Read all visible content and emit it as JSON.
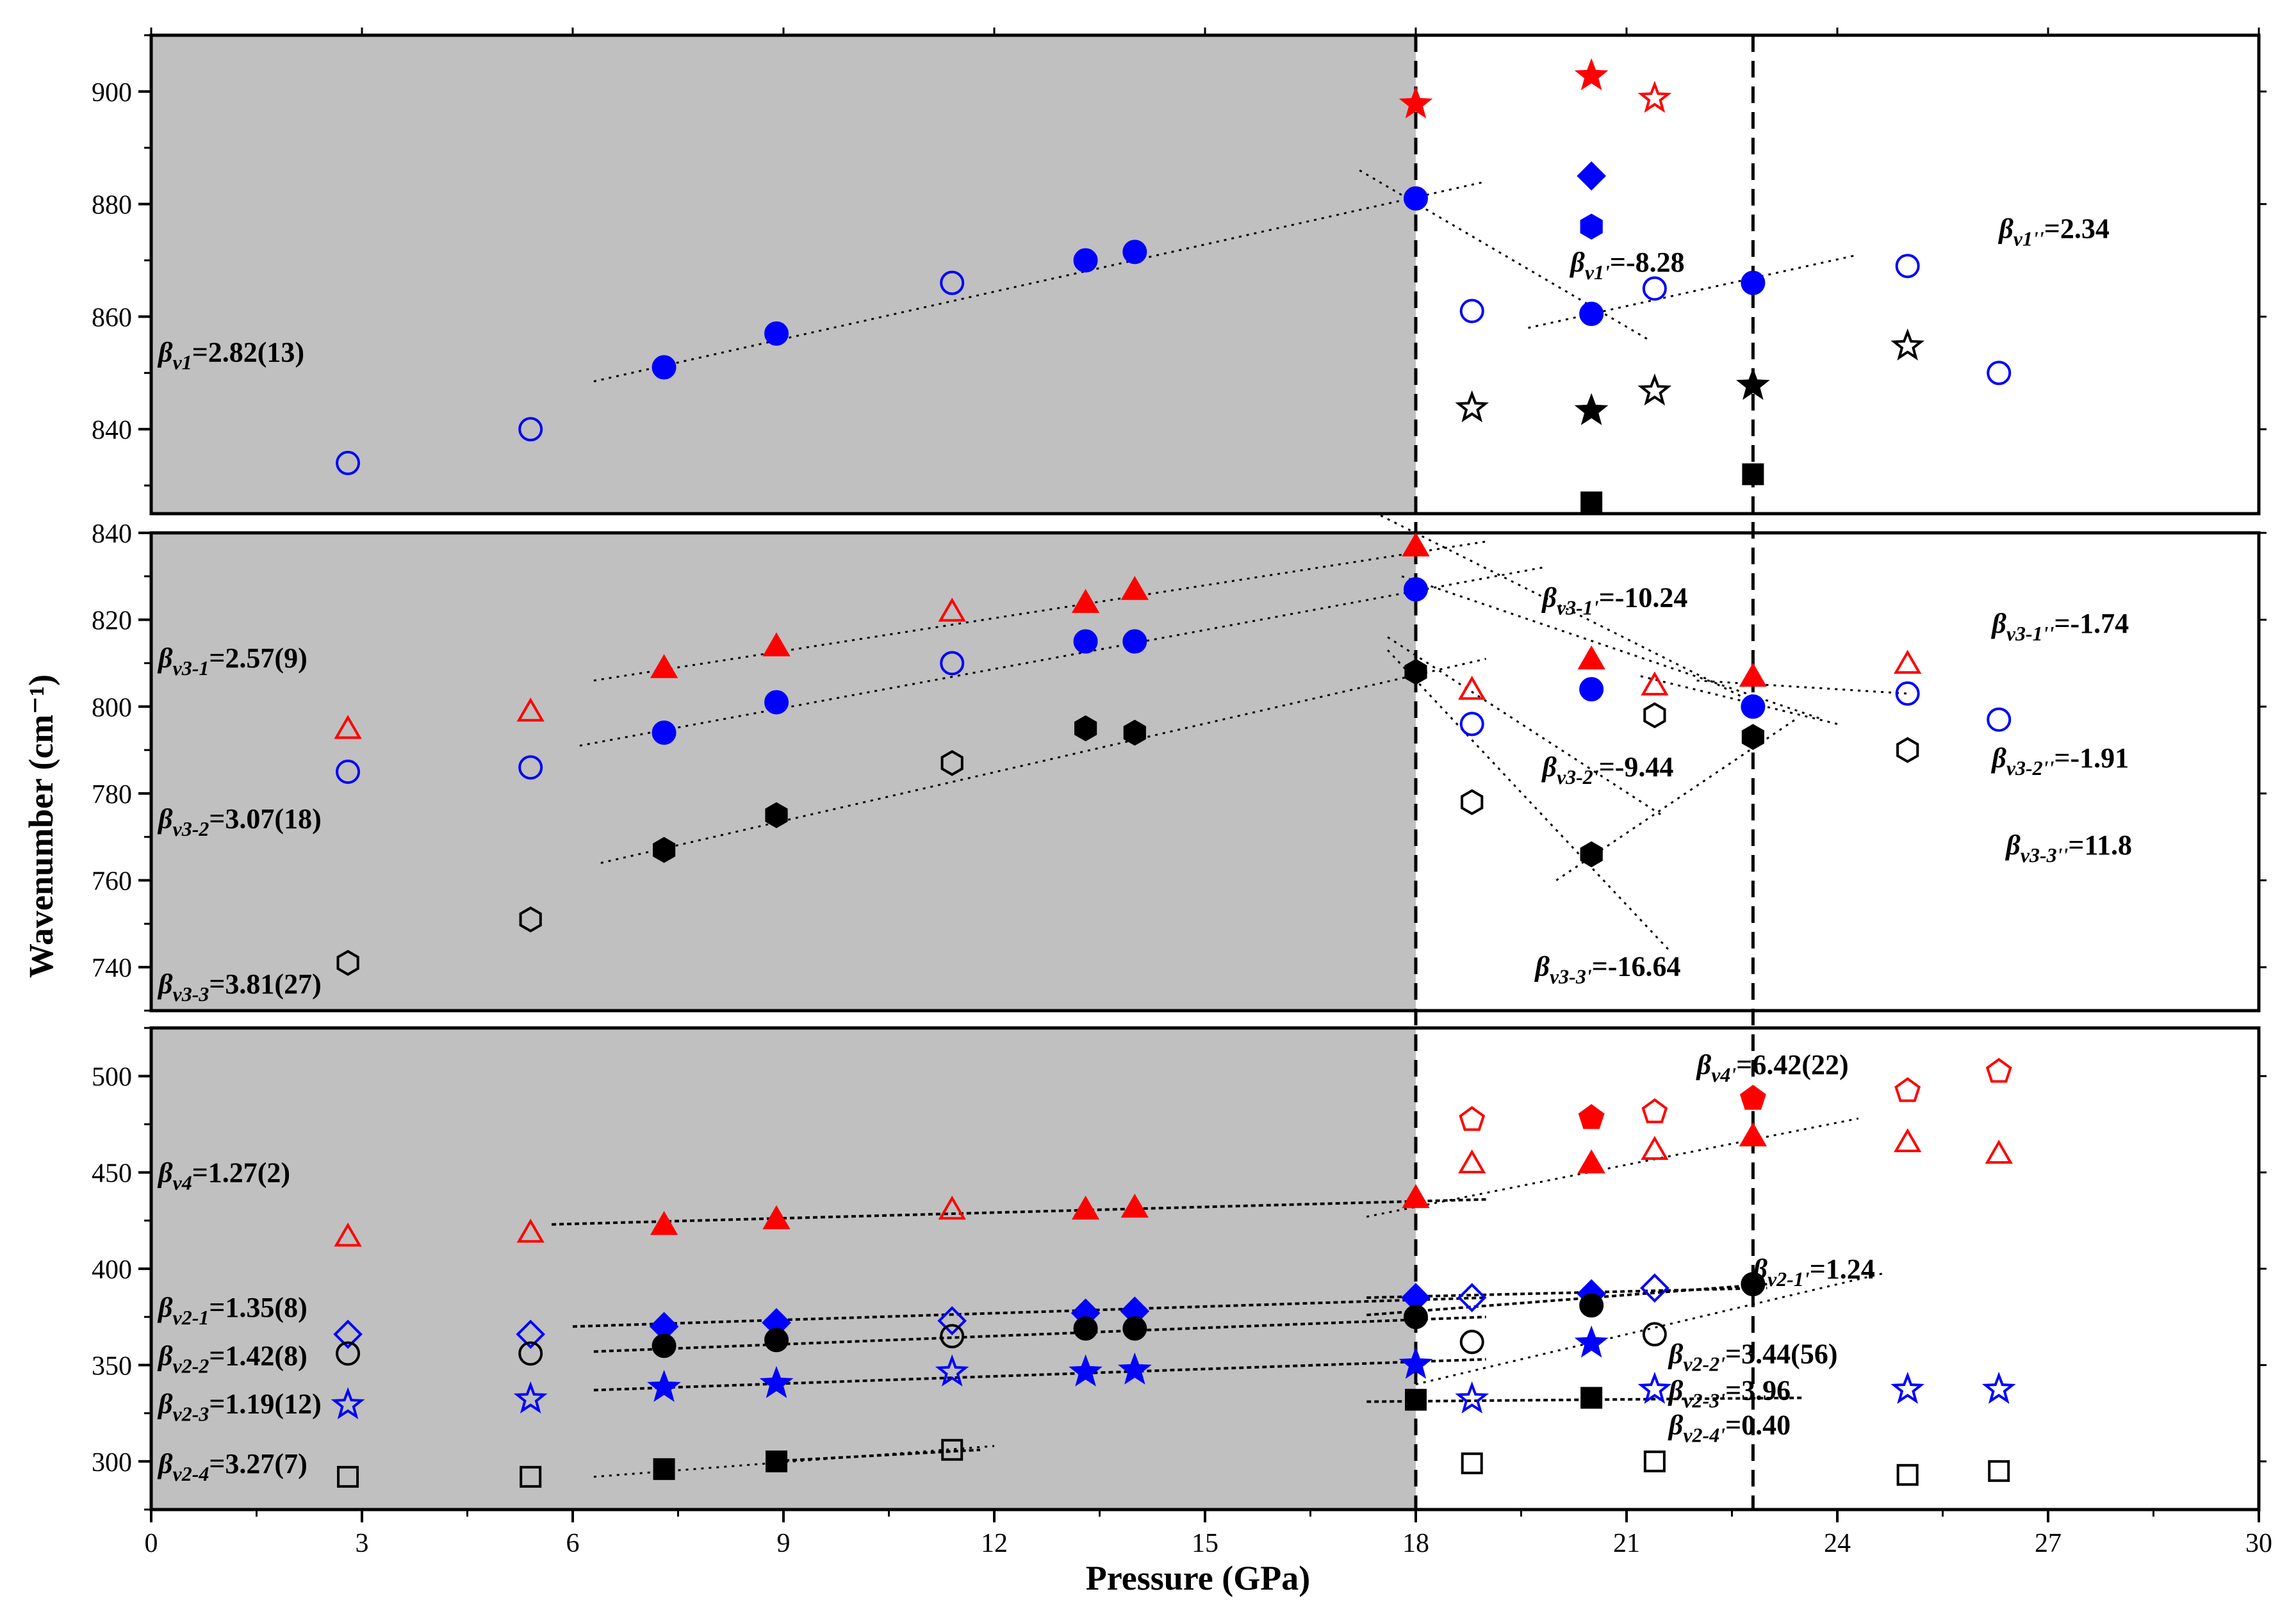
{
  "chart_data": {
    "type": "scatter",
    "xlabel": "Pressure (GPa)",
    "ylabel": "Wavenumber (cm⁻¹)",
    "xlim": [
      0,
      30
    ],
    "x_ticks": [
      "0",
      "3",
      "6",
      "9",
      "12",
      "15",
      "18",
      "21",
      "24",
      "27",
      "30"
    ],
    "shaded_region": [
      0,
      18
    ],
    "vertical_lines": [
      18,
      22.8
    ],
    "panels": [
      {
        "id": "top",
        "ylim": [
          825,
          910
        ],
        "y_ticks": [
          840,
          860,
          880,
          900
        ],
        "series": [
          {
            "marker": "circle",
            "color": "#0000ff",
            "filled": false,
            "x": [
              2.8,
              5.4,
              11.4,
              18.8,
              21.4,
              25,
              26.3
            ],
            "y": [
              834,
              840,
              866,
              861,
              865,
              869,
              850
            ]
          },
          {
            "marker": "circle",
            "color": "#0000ff",
            "filled": true,
            "x": [
              7.3,
              8.9,
              13.3,
              14,
              18,
              20.5,
              22.8
            ],
            "y": [
              851,
              857,
              870,
              871.5,
              881,
              860.5,
              866
            ]
          },
          {
            "marker": "star",
            "color": "#ff0000",
            "filled": true,
            "x": [
              18,
              20.5
            ],
            "y": [
              898,
              903
            ]
          },
          {
            "marker": "star",
            "color": "#ff0000",
            "filled": false,
            "x": [
              21.4
            ],
            "y": [
              899
            ]
          },
          {
            "marker": "diamond",
            "color": "#0000ff",
            "filled": true,
            "x": [
              20.5
            ],
            "y": [
              885
            ]
          },
          {
            "marker": "hexagon",
            "color": "#0000ff",
            "filled": true,
            "x": [
              20.5
            ],
            "y": [
              876
            ]
          },
          {
            "marker": "star",
            "color": "#000000",
            "filled": false,
            "x": [
              18.8,
              21.4,
              25
            ],
            "y": [
              844,
              847,
              855
            ]
          },
          {
            "marker": "star",
            "color": "#000000",
            "filled": true,
            "x": [
              20.5,
              22.8
            ],
            "y": [
              843.5,
              848
            ]
          },
          {
            "marker": "square",
            "color": "#000000",
            "filled": true,
            "x": [
              20.5,
              22.8
            ],
            "y": [
              827,
              832
            ]
          }
        ],
        "fit_lines": [
          {
            "x": [
              6.3,
              19.0
            ],
            "y": [
              848.5,
              884
            ]
          },
          {
            "x": [
              17.2,
              21.3
            ],
            "y": [
              886,
              856
            ]
          },
          {
            "x": [
              19.6,
              24.3
            ],
            "y": [
              858,
              871
            ]
          }
        ]
      },
      {
        "id": "middle",
        "ylim": [
          730,
          840
        ],
        "y_ticks": [
          740,
          760,
          780,
          800,
          820,
          840
        ],
        "series": [
          {
            "marker": "triangle",
            "color": "#ff0000",
            "filled": false,
            "x": [
              2.8,
              5.4,
              11.4,
              18.8,
              21.4,
              25
            ],
            "y": [
              795,
              799,
              822,
              804,
              805,
              810
            ]
          },
          {
            "marker": "triangle",
            "color": "#ff0000",
            "filled": true,
            "x": [
              7.3,
              8.9,
              13.3,
              14,
              18,
              20.5,
              22.8
            ],
            "y": [
              809,
              814,
              824,
              827,
              837,
              811,
              807
            ]
          },
          {
            "marker": "circle",
            "color": "#0000ff",
            "filled": false,
            "x": [
              2.8,
              5.4,
              11.4,
              18.8,
              25,
              26.3
            ],
            "y": [
              785,
              786,
              810,
              796,
              803,
              797
            ]
          },
          {
            "marker": "circle",
            "color": "#0000ff",
            "filled": true,
            "x": [
              7.3,
              8.9,
              13.3,
              14,
              18,
              20.5,
              22.8
            ],
            "y": [
              794,
              801,
              815,
              815,
              827,
              804,
              800
            ]
          },
          {
            "marker": "hexagon",
            "color": "#000000",
            "filled": false,
            "x": [
              2.8,
              5.4,
              11.4,
              18.8,
              21.4,
              25
            ],
            "y": [
              741,
              751,
              787,
              778,
              798,
              790
            ]
          },
          {
            "marker": "hexagon",
            "color": "#000000",
            "filled": true,
            "x": [
              7.3,
              8.9,
              13.3,
              14,
              18,
              20.5,
              22.8
            ],
            "y": [
              767,
              775,
              795,
              794,
              808,
              766,
              793
            ]
          }
        ],
        "fit_lines": [
          {
            "x": [
              6.3,
              19.0
            ],
            "y": [
              806,
              838
            ]
          },
          {
            "x": [
              6.1,
              19.8
            ],
            "y": [
              791,
              832
            ]
          },
          {
            "x": [
              6.4,
              19.0
            ],
            "y": [
              764,
              811
            ]
          },
          {
            "x": [
              17.5,
              22.8
            ],
            "y": [
              844,
              801
            ]
          },
          {
            "x": [
              17.8,
              23.8
            ],
            "y": [
              830,
              797
            ]
          },
          {
            "x": [
              17.6,
              21.5
            ],
            "y": [
              816,
              775
            ]
          },
          {
            "x": [
              22.0,
              25.0
            ],
            "y": [
              806,
              803
            ]
          },
          {
            "x": [
              21.2,
              24.0
            ],
            "y": [
              807,
              796
            ]
          },
          {
            "x": [
              17.6,
              21.6
            ],
            "y": [
              813,
              744
            ]
          },
          {
            "x": [
              20.0,
              23.4
            ],
            "y": [
              760,
              797
            ]
          }
        ]
      },
      {
        "id": "bottom",
        "ylim": [
          275,
          525
        ],
        "y_ticks": [
          300,
          350,
          400,
          450,
          500
        ],
        "series": [
          {
            "marker": "triangle",
            "color": "#ff0000",
            "filled": false,
            "x": [
              2.8,
              5.4,
              11.4,
              18.8,
              21.4,
              25,
              26.3
            ],
            "y": [
              417,
              419,
              431,
              455,
              462,
              466,
              460
            ]
          },
          {
            "marker": "triangle",
            "color": "#ff0000",
            "filled": true,
            "x": [
              7.3,
              8.9,
              13.3,
              14,
              18,
              20.5,
              22.8
            ],
            "y": [
              423,
              426,
              431,
              432,
              437,
              455,
              469
            ]
          },
          {
            "marker": "pentagon",
            "color": "#ff0000",
            "filled": false,
            "x": [
              18.8,
              21.4,
              25,
              26.3
            ],
            "y": [
              478,
              482,
              493,
              503
            ]
          },
          {
            "marker": "pentagon",
            "color": "#ff0000",
            "filled": true,
            "x": [
              20.5,
              22.8
            ],
            "y": [
              479,
              489
            ]
          },
          {
            "marker": "diamond",
            "color": "#0000ff",
            "filled": false,
            "x": [
              2.8,
              5.4,
              11.4,
              18.8,
              21.4
            ],
            "y": [
              366,
              366,
              373,
              385,
              390
            ]
          },
          {
            "marker": "diamond",
            "color": "#0000ff",
            "filled": true,
            "x": [
              7.3,
              8.9,
              13.3,
              14,
              18,
              20.5
            ],
            "y": [
              370,
              372,
              377,
              378,
              385,
              387
            ]
          },
          {
            "marker": "circle",
            "color": "#000000",
            "filled": false,
            "x": [
              2.8,
              5.4,
              11.4,
              18.8,
              21.4
            ],
            "y": [
              356,
              356,
              365,
              362,
              366
            ]
          },
          {
            "marker": "circle",
            "color": "#000000",
            "filled": true,
            "x": [
              7.3,
              8.9,
              13.3,
              14,
              18,
              20.5,
              22.8
            ],
            "y": [
              360,
              363,
              369,
              369,
              375,
              381,
              392
            ]
          },
          {
            "marker": "star",
            "color": "#0000ff",
            "filled": false,
            "x": [
              2.8,
              5.4,
              11.4,
              18.8,
              21.4,
              25,
              26.3
            ],
            "y": [
              330,
              333,
              347,
              333,
              338,
              338,
              338
            ]
          },
          {
            "marker": "star",
            "color": "#0000ff",
            "filled": true,
            "x": [
              7.3,
              8.9,
              13.3,
              14,
              18,
              20.5
            ],
            "y": [
              339,
              341,
              347,
              348,
              351,
              362
            ]
          },
          {
            "marker": "square",
            "color": "#000000",
            "filled": false,
            "x": [
              2.8,
              5.4,
              11.4,
              18.8,
              21.4,
              25,
              26.3
            ],
            "y": [
              292,
              292,
              306,
              299,
              300,
              293,
              295
            ]
          },
          {
            "marker": "square",
            "color": "#000000",
            "filled": true,
            "x": [
              7.3,
              8.9,
              20.5
            ],
            "y": [
              296,
              300,
              333
            ]
          },
          {
            "marker": "square",
            "color": "#000000",
            "filled": true,
            "x": [
              18
            ],
            "y": [
              332
            ]
          }
        ],
        "fit_lines": [
          {
            "x": [
              5.7,
              19.0
            ],
            "y": [
              423,
              436
            ],
            "dense": true
          },
          {
            "x": [
              17.3,
              24.3
            ],
            "y": [
              427,
              478
            ]
          },
          {
            "x": [
              6.0,
              19.0
            ],
            "y": [
              370,
              385
            ],
            "dense": true
          },
          {
            "x": [
              6.3,
              19.0
            ],
            "y": [
              357,
              375
            ],
            "dense": true
          },
          {
            "x": [
              6.3,
              19.0
            ],
            "y": [
              337,
              353
            ],
            "dense": true
          },
          {
            "x": [
              6.3,
              12.0
            ],
            "y": [
              292,
              308
            ]
          },
          {
            "x": [
              8.8,
              11.8
            ],
            "y": [
              300,
              306
            ],
            "dense": true
          },
          {
            "x": [
              17.3,
              23.5
            ],
            "y": [
              331,
              333
            ],
            "dense": true
          },
          {
            "x": [
              18.0,
              24.7
            ],
            "y": [
              340,
              398
            ]
          },
          {
            "x": [
              17.3,
              23.0
            ],
            "y": [
              385,
              390
            ],
            "dense": true
          },
          {
            "x": [
              17.3,
              23.0
            ],
            "y": [
              376,
              392
            ],
            "dense": true
          }
        ]
      }
    ],
    "annotations": {
      "top": [
        {
          "x": 0.1,
          "y": 852,
          "main": "β",
          "sub": "v1",
          "tail": "=2.82(13)"
        },
        {
          "x": 20.2,
          "y": 868,
          "main": "β",
          "sub": "v1'",
          "tail": "=-8.28"
        },
        {
          "x": 26.3,
          "y": 874,
          "main": "β",
          "sub": "v1''",
          "tail": "=2.34"
        }
      ],
      "middle": [
        {
          "x": 0.1,
          "y": 809,
          "main": "β",
          "sub": "v3-1",
          "tail": "=2.57(9)"
        },
        {
          "x": 19.8,
          "y": 823,
          "main": "β",
          "sub": "v3-1'",
          "tail": "=-10.24"
        },
        {
          "x": 26.2,
          "y": 817,
          "main": "β",
          "sub": "v3-1''",
          "tail": "=-1.74"
        },
        {
          "x": 0.1,
          "y": 772,
          "main": "β",
          "sub": "v3-2",
          "tail": "=3.07(18)"
        },
        {
          "x": 19.8,
          "y": 784,
          "main": "β",
          "sub": "v3-2'",
          "tail": "=-9.44"
        },
        {
          "x": 26.2,
          "y": 786,
          "main": "β",
          "sub": "v3-2''",
          "tail": "=-1.91"
        },
        {
          "x": 26.4,
          "y": 766,
          "main": "β",
          "sub": "v3-3''",
          "tail": "=11.8"
        },
        {
          "x": 0.1,
          "y": 734,
          "main": "β",
          "sub": "v3-3",
          "tail": "=3.81(27)"
        },
        {
          "x": 19.7,
          "y": 738,
          "main": "β",
          "sub": "v3-3'",
          "tail": "=-16.64"
        }
      ],
      "bottom": [
        {
          "x": 22.0,
          "y": 501,
          "main": "β",
          "sub": "v4'",
          "tail": "=6.42(22)"
        },
        {
          "x": 0.1,
          "y": 445,
          "main": "β",
          "sub": "v4",
          "tail": "=1.27(2)"
        },
        {
          "x": 22.8,
          "y": 395,
          "main": "β",
          "sub": "v2-1'",
          "tail": "=1.24"
        },
        {
          "x": 0.1,
          "y": 375,
          "main": "β",
          "sub": "v2-1",
          "tail": "=1.35(8)"
        },
        {
          "x": 0.1,
          "y": 350,
          "main": "β",
          "sub": "v2-2",
          "tail": "=1.42(8)"
        },
        {
          "x": 21.6,
          "y": 351,
          "main": "β",
          "sub": "v2-2'",
          "tail": "=3.44(56)"
        },
        {
          "x": 0.1,
          "y": 325,
          "main": "β",
          "sub": "v2-3",
          "tail": "=1.19(12)"
        },
        {
          "x": 21.6,
          "y": 332,
          "main": "β",
          "sub": "v2-3'",
          "tail": "=3.96"
        },
        {
          "x": 21.6,
          "y": 314,
          "main": "β",
          "sub": "v2-4'",
          "tail": "=0.40"
        },
        {
          "x": 0.1,
          "y": 294,
          "main": "β",
          "sub": "v2-4",
          "tail": "=3.27(7)"
        }
      ]
    }
  }
}
